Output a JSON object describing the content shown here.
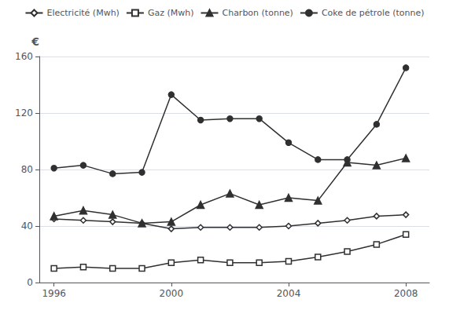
{
  "chart_data": {
    "type": "line",
    "x": [
      1996,
      1997,
      1998,
      1999,
      2000,
      2001,
      2002,
      2003,
      2004,
      2005,
      2006,
      2007,
      2008
    ],
    "series": [
      {
        "name": "Electricité (Mwh)",
        "color": "#303030",
        "marker": "open-diamond",
        "values": [
          45,
          44,
          43,
          42,
          38,
          39,
          39,
          39,
          40,
          42,
          44,
          47,
          48
        ]
      },
      {
        "name": "Gaz (Mwh)",
        "color": "#303030",
        "marker": "open-square",
        "values": [
          10,
          11,
          10,
          10,
          14,
          16,
          14,
          14,
          15,
          18,
          22,
          27,
          34
        ]
      },
      {
        "name": "Charbon (tonne)",
        "color": "#303030",
        "marker": "triangle",
        "values": [
          47,
          51,
          48,
          42,
          43,
          55,
          63,
          55,
          60,
          58,
          85,
          83,
          88
        ]
      },
      {
        "name": "Coke de pétrole (tonne)",
        "color": "#303030",
        "marker": "circle",
        "values": [
          81,
          83,
          77,
          78,
          133,
          115,
          116,
          116,
          99,
          87,
          87,
          112,
          152
        ]
      }
    ],
    "xlim": [
      1995.5,
      2008.8
    ],
    "xticks": [
      1996,
      2000,
      2004,
      2008
    ],
    "ylim": [
      0,
      160
    ],
    "yticks": [
      0,
      40,
      80,
      120,
      160
    ],
    "ylabel": "€",
    "grid": true,
    "legend": "top"
  }
}
